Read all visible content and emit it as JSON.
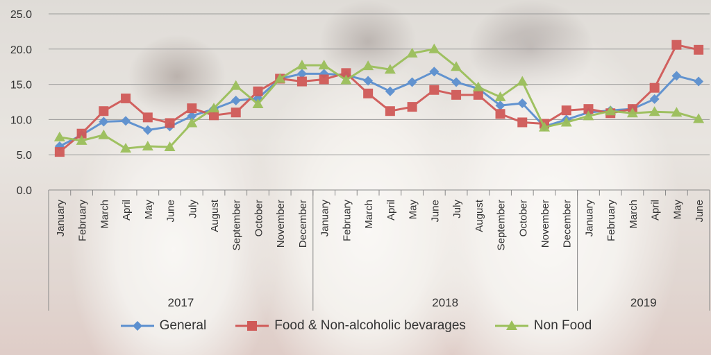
{
  "chart_data": {
    "type": "line",
    "categories": [
      "January",
      "February",
      "March",
      "April",
      "May",
      "June",
      "July",
      "August",
      "September",
      "October",
      "November",
      "December",
      "January",
      "February",
      "March",
      "April",
      "May",
      "June",
      "July",
      "August",
      "September",
      "October",
      "November",
      "December",
      "January",
      "February",
      "March",
      "April",
      "May",
      "June"
    ],
    "years": [
      {
        "label": "2017",
        "start": 0,
        "end": 11
      },
      {
        "label": "2018",
        "start": 12,
        "end": 23
      },
      {
        "label": "2019",
        "start": 24,
        "end": 29
      }
    ],
    "yticks": [
      "0.0",
      "5.0",
      "10.0",
      "15.0",
      "20.0",
      "25.0"
    ],
    "ylim": [
      0,
      25
    ],
    "grid": true,
    "legend_position": "bottom",
    "series": [
      {
        "name": "General",
        "color": "#5b8fcf",
        "marker": "diamond",
        "values": [
          6.2,
          7.8,
          9.7,
          9.8,
          8.5,
          9.0,
          10.5,
          11.5,
          12.7,
          13.0,
          15.8,
          16.5,
          16.5,
          16.3,
          15.5,
          14.0,
          15.3,
          16.8,
          15.3,
          14.4,
          12.0,
          12.3,
          9.0,
          10.0,
          11.0,
          11.3,
          11.5,
          12.9,
          16.2,
          15.4
        ]
      },
      {
        "name": "Food & Non-alcoholic bevarages",
        "color": "#d05a58",
        "marker": "square",
        "values": [
          5.4,
          8.0,
          11.2,
          13.0,
          10.3,
          9.5,
          11.6,
          10.6,
          11.0,
          14.0,
          15.8,
          15.4,
          15.7,
          16.6,
          13.7,
          11.2,
          11.8,
          14.2,
          13.5,
          13.5,
          10.8,
          9.6,
          9.4,
          11.3,
          11.5,
          10.9,
          11.5,
          14.5,
          20.6,
          19.9
        ]
      },
      {
        "name": "Non Food",
        "color": "#9bbf5a",
        "marker": "triangle",
        "values": [
          7.5,
          7.0,
          7.8,
          5.9,
          6.2,
          6.1,
          9.5,
          11.6,
          14.8,
          12.2,
          15.8,
          17.7,
          17.7,
          15.6,
          17.6,
          17.1,
          19.4,
          20.0,
          17.5,
          14.6,
          13.2,
          15.4,
          8.9,
          9.6,
          10.5,
          11.2,
          10.9,
          11.1,
          11.0,
          10.1
        ]
      }
    ]
  }
}
